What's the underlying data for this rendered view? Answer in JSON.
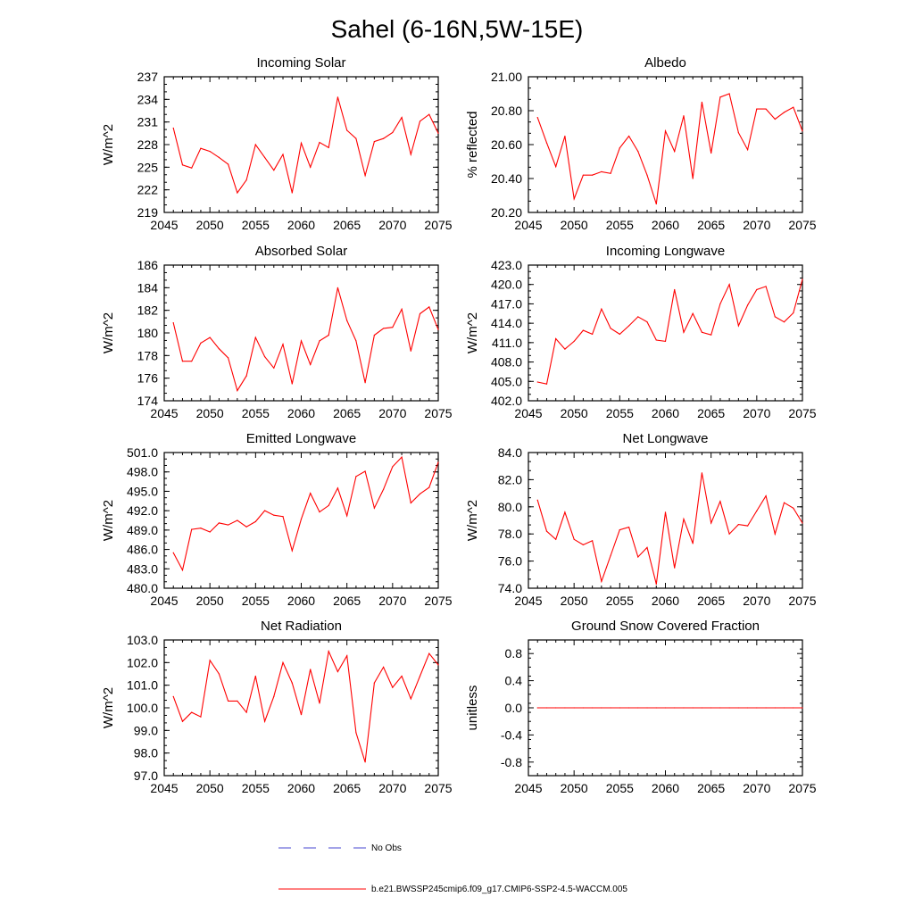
{
  "title": "Sahel (6-16N,5W-15E)",
  "colors": {
    "series": "#ff0000",
    "obs": "#4a4ad0",
    "axis": "#000000"
  },
  "legend": {
    "obs_label": "No Obs",
    "model_label": "b.e21.BWSSP245cmip6.f09_g17.CMIP6-SSP2-4.5-WACCM.005"
  },
  "chart_data": [
    {
      "type": "line",
      "title": "Incoming Solar",
      "ylabel": "W/m^2",
      "xlim": [
        2045,
        2075
      ],
      "ylim": [
        219,
        237
      ],
      "x_ticks": [
        2045,
        2050,
        2055,
        2060,
        2065,
        2070,
        2075
      ],
      "y_ticks": [
        219,
        222,
        225,
        228,
        231,
        234,
        237
      ],
      "y_tick_labels": [
        "219",
        "222",
        "225",
        "228",
        "231",
        "234",
        "237"
      ],
      "x": [
        2046,
        2047,
        2048,
        2049,
        2050,
        2051,
        2052,
        2053,
        2054,
        2055,
        2056,
        2057,
        2058,
        2059,
        2060,
        2061,
        2062,
        2063,
        2064,
        2065,
        2066,
        2067,
        2068,
        2069,
        2070,
        2071,
        2072,
        2073,
        2074,
        2075
      ],
      "values": [
        230.2,
        225.3,
        224.9,
        227.5,
        227.1,
        226.3,
        225.4,
        221.6,
        223.3,
        228.0,
        226.3,
        224.6,
        226.7,
        221.6,
        228.2,
        225.0,
        228.3,
        227.6,
        234.3,
        229.9,
        228.8,
        223.9,
        228.4,
        228.8,
        229.6,
        231.6,
        226.7,
        231.1,
        232.0,
        229.5
      ]
    },
    {
      "type": "line",
      "title": "Albedo",
      "ylabel": "% reflected",
      "xlim": [
        2045,
        2075
      ],
      "ylim": [
        20.2,
        21.0
      ],
      "x_ticks": [
        2045,
        2050,
        2055,
        2060,
        2065,
        2070,
        2075
      ],
      "y_ticks": [
        20.2,
        20.4,
        20.6,
        20.8,
        21.0
      ],
      "y_tick_labels": [
        "20.20",
        "20.40",
        "20.60",
        "20.80",
        "21.00"
      ],
      "x": [
        2046,
        2047,
        2048,
        2049,
        2050,
        2051,
        2052,
        2053,
        2054,
        2055,
        2056,
        2057,
        2058,
        2059,
        2060,
        2061,
        2062,
        2063,
        2064,
        2065,
        2066,
        2067,
        2068,
        2069,
        2070,
        2071,
        2072,
        2073,
        2074,
        2075
      ],
      "values": [
        20.76,
        20.61,
        20.47,
        20.65,
        20.28,
        20.42,
        20.42,
        20.44,
        20.43,
        20.58,
        20.65,
        20.56,
        20.42,
        20.25,
        20.68,
        20.56,
        20.77,
        20.4,
        20.85,
        20.55,
        20.88,
        20.9,
        20.67,
        20.57,
        20.81,
        20.81,
        20.75,
        20.79,
        20.82,
        20.68
      ]
    },
    {
      "type": "line",
      "title": "Absorbed Solar",
      "ylabel": "W/m^2",
      "xlim": [
        2045,
        2075
      ],
      "ylim": [
        174,
        186
      ],
      "x_ticks": [
        2045,
        2050,
        2055,
        2060,
        2065,
        2070,
        2075
      ],
      "y_ticks": [
        174,
        176,
        178,
        180,
        182,
        184,
        186
      ],
      "y_tick_labels": [
        "174",
        "176",
        "178",
        "180",
        "182",
        "184",
        "186"
      ],
      "x": [
        2046,
        2047,
        2048,
        2049,
        2050,
        2051,
        2052,
        2053,
        2054,
        2055,
        2056,
        2057,
        2058,
        2059,
        2060,
        2061,
        2062,
        2063,
        2064,
        2065,
        2066,
        2067,
        2068,
        2069,
        2070,
        2071,
        2072,
        2073,
        2074,
        2075
      ],
      "values": [
        180.9,
        177.5,
        177.5,
        179.1,
        179.6,
        178.6,
        177.8,
        174.9,
        176.2,
        179.6,
        177.9,
        176.9,
        179.0,
        175.5,
        179.3,
        177.2,
        179.3,
        179.8,
        184.0,
        181.1,
        179.3,
        175.6,
        179.8,
        180.4,
        180.5,
        182.1,
        178.4,
        181.7,
        182.3,
        180.3
      ]
    },
    {
      "type": "line",
      "title": "Incoming Longwave",
      "ylabel": "W/m^2",
      "xlim": [
        2045,
        2075
      ],
      "ylim": [
        402.0,
        423.0
      ],
      "x_ticks": [
        2045,
        2050,
        2055,
        2060,
        2065,
        2070,
        2075
      ],
      "y_ticks": [
        402,
        405,
        408,
        411,
        414,
        417,
        420,
        423
      ],
      "y_tick_labels": [
        "402.0",
        "405.0",
        "408.0",
        "411.0",
        "414.0",
        "417.0",
        "420.0",
        "423.0"
      ],
      "x": [
        2046,
        2047,
        2048,
        2049,
        2050,
        2051,
        2052,
        2053,
        2054,
        2055,
        2056,
        2057,
        2058,
        2059,
        2060,
        2061,
        2062,
        2063,
        2064,
        2065,
        2066,
        2067,
        2068,
        2069,
        2070,
        2071,
        2072,
        2073,
        2074,
        2075
      ],
      "values": [
        404.9,
        404.6,
        411.6,
        410.0,
        411.2,
        412.9,
        412.3,
        416.2,
        413.2,
        412.3,
        413.6,
        415.0,
        414.2,
        411.4,
        411.2,
        419.2,
        412.6,
        415.5,
        412.6,
        412.2,
        417.0,
        420.0,
        413.6,
        416.8,
        419.2,
        419.7,
        415.0,
        414.2,
        415.6,
        420.8
      ]
    },
    {
      "type": "line",
      "title": "Emitted Longwave",
      "ylabel": "W/m^2",
      "xlim": [
        2045,
        2075
      ],
      "ylim": [
        480.0,
        501.0
      ],
      "x_ticks": [
        2045,
        2050,
        2055,
        2060,
        2065,
        2070,
        2075
      ],
      "y_ticks": [
        480,
        483,
        486,
        489,
        492,
        495,
        498,
        501
      ],
      "y_tick_labels": [
        "480.0",
        "483.0",
        "486.0",
        "489.0",
        "492.0",
        "495.0",
        "498.0",
        "501.0"
      ],
      "x": [
        2046,
        2047,
        2048,
        2049,
        2050,
        2051,
        2052,
        2053,
        2054,
        2055,
        2056,
        2057,
        2058,
        2059,
        2060,
        2061,
        2062,
        2063,
        2064,
        2065,
        2066,
        2067,
        2068,
        2069,
        2070,
        2071,
        2072,
        2073,
        2074,
        2075
      ],
      "values": [
        485.5,
        482.8,
        489.1,
        489.3,
        488.7,
        490.1,
        489.8,
        490.5,
        489.5,
        490.3,
        492.0,
        491.3,
        491.1,
        485.8,
        490.7,
        494.7,
        491.8,
        492.8,
        495.5,
        491.2,
        497.3,
        498.1,
        492.4,
        495.3,
        498.8,
        500.3,
        493.2,
        494.6,
        495.6,
        499.5
      ]
    },
    {
      "type": "line",
      "title": "Net Longwave",
      "ylabel": "W/m^2",
      "xlim": [
        2045,
        2075
      ],
      "ylim": [
        74.0,
        84.0
      ],
      "x_ticks": [
        2045,
        2050,
        2055,
        2060,
        2065,
        2070,
        2075
      ],
      "y_ticks": [
        74,
        76,
        78,
        80,
        82,
        84
      ],
      "y_tick_labels": [
        "74.0",
        "76.0",
        "78.0",
        "80.0",
        "82.0",
        "84.0"
      ],
      "x": [
        2046,
        2047,
        2048,
        2049,
        2050,
        2051,
        2052,
        2053,
        2054,
        2055,
        2056,
        2057,
        2058,
        2059,
        2060,
        2061,
        2062,
        2063,
        2064,
        2065,
        2066,
        2067,
        2068,
        2069,
        2070,
        2071,
        2072,
        2073,
        2074,
        2075
      ],
      "values": [
        80.5,
        78.2,
        77.6,
        79.6,
        77.6,
        77.2,
        77.5,
        74.5,
        76.4,
        78.3,
        78.5,
        76.3,
        77.0,
        74.3,
        79.6,
        75.5,
        79.1,
        77.3,
        82.5,
        78.8,
        80.4,
        78.0,
        78.7,
        78.6,
        79.7,
        80.8,
        78.0,
        80.3,
        79.9,
        78.8
      ]
    },
    {
      "type": "line",
      "title": "Net Radiation",
      "ylabel": "W/m^2",
      "xlim": [
        2045,
        2075
      ],
      "ylim": [
        97.0,
        103.0
      ],
      "x_ticks": [
        2045,
        2050,
        2055,
        2060,
        2065,
        2070,
        2075
      ],
      "y_ticks": [
        97,
        98,
        99,
        100,
        101,
        102,
        103
      ],
      "y_tick_labels": [
        "97.0",
        "98.0",
        "99.0",
        "100.0",
        "101.0",
        "102.0",
        "103.0"
      ],
      "x": [
        2046,
        2047,
        2048,
        2049,
        2050,
        2051,
        2052,
        2053,
        2054,
        2055,
        2056,
        2057,
        2058,
        2059,
        2060,
        2061,
        2062,
        2063,
        2064,
        2065,
        2066,
        2067,
        2068,
        2069,
        2070,
        2071,
        2072,
        2073,
        2074,
        2075
      ],
      "values": [
        100.5,
        99.4,
        99.8,
        99.6,
        102.1,
        101.5,
        100.3,
        100.3,
        99.8,
        101.4,
        99.4,
        100.5,
        102.0,
        101.1,
        99.7,
        101.7,
        100.2,
        102.5,
        101.6,
        102.3,
        98.9,
        97.6,
        101.1,
        101.8,
        100.9,
        101.4,
        100.4,
        101.4,
        102.4,
        101.9
      ]
    },
    {
      "type": "line",
      "title": "Ground Snow Covered Fraction",
      "ylabel": "unitless",
      "xlim": [
        2045,
        2075
      ],
      "ylim": [
        -1.0,
        1.0
      ],
      "x_ticks": [
        2045,
        2050,
        2055,
        2060,
        2065,
        2070,
        2075
      ],
      "y_ticks": [
        -0.8,
        -0.4,
        0.0,
        0.4,
        0.8
      ],
      "y_tick_labels": [
        "-0.8",
        "-0.4",
        "0.0",
        "0.4",
        "0.8"
      ],
      "x": [
        2046,
        2047,
        2048,
        2049,
        2050,
        2051,
        2052,
        2053,
        2054,
        2055,
        2056,
        2057,
        2058,
        2059,
        2060,
        2061,
        2062,
        2063,
        2064,
        2065,
        2066,
        2067,
        2068,
        2069,
        2070,
        2071,
        2072,
        2073,
        2074,
        2075
      ],
      "values": [
        0,
        0,
        0,
        0,
        0,
        0,
        0,
        0,
        0,
        0,
        0,
        0,
        0,
        0,
        0,
        0,
        0,
        0,
        0,
        0,
        0,
        0,
        0,
        0,
        0,
        0,
        0,
        0,
        0,
        0
      ]
    }
  ]
}
